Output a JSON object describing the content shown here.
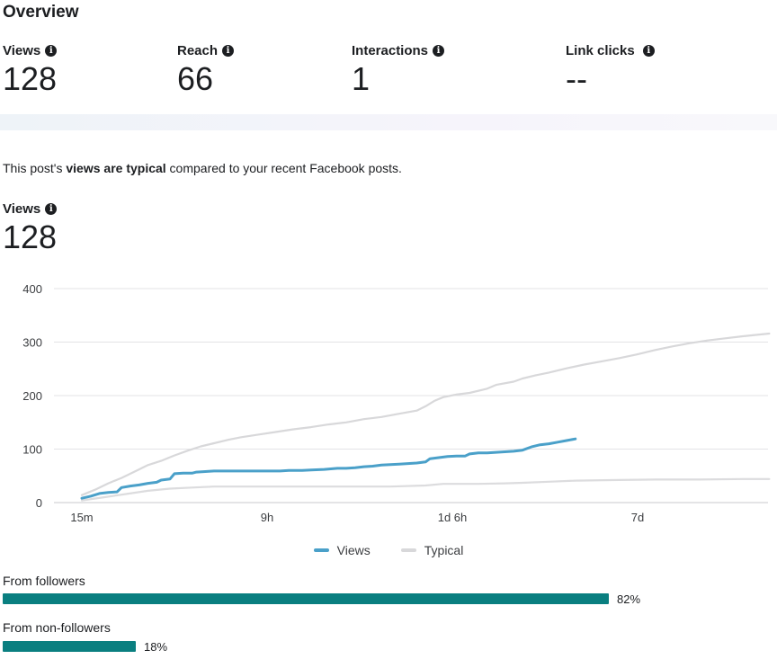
{
  "overview": {
    "title": "Overview",
    "metrics": [
      {
        "label": "Views",
        "value": "128"
      },
      {
        "label": "Reach",
        "value": "66"
      },
      {
        "label": "Interactions",
        "value": "1"
      },
      {
        "label": "Link clicks",
        "value": "--"
      }
    ],
    "info_glyph": "i"
  },
  "typical": {
    "prefix": "This post's ",
    "bold": "views are typical",
    "suffix": " compared to your recent Facebook posts."
  },
  "views_section": {
    "label": "Views",
    "value": "128"
  },
  "chart_data": {
    "type": "line",
    "title": "",
    "xlabel": "",
    "ylabel": "",
    "ylim": [
      0,
      400
    ],
    "yticks": [
      "0",
      "100",
      "200",
      "300",
      "400"
    ],
    "xticks": [
      "15m",
      "9h",
      "1d 6h",
      "7d"
    ],
    "grid": true,
    "legend_placement": "bottom-center",
    "series": [
      {
        "name": "Views",
        "color": "#4aa0c9",
        "points": [
          [
            0,
            8
          ],
          [
            2,
            12
          ],
          [
            4,
            17
          ],
          [
            6,
            19
          ],
          [
            8,
            20
          ],
          [
            9,
            28
          ],
          [
            11,
            31
          ],
          [
            13,
            33
          ],
          [
            15,
            36
          ],
          [
            17,
            38
          ],
          [
            18,
            42
          ],
          [
            20,
            44
          ],
          [
            21,
            54
          ],
          [
            23,
            55
          ],
          [
            25,
            55
          ],
          [
            26,
            57
          ],
          [
            28,
            58
          ],
          [
            30,
            59
          ],
          [
            35,
            59
          ],
          [
            40,
            59
          ],
          [
            45,
            59
          ],
          [
            47,
            60
          ],
          [
            50,
            60
          ],
          [
            52,
            61
          ],
          [
            55,
            62
          ],
          [
            58,
            64
          ],
          [
            60,
            64
          ],
          [
            62,
            65
          ],
          [
            64,
            67
          ],
          [
            66,
            68
          ],
          [
            68,
            70
          ],
          [
            70,
            71
          ],
          [
            72,
            72
          ],
          [
            74,
            73
          ],
          [
            76,
            74
          ],
          [
            78,
            76
          ],
          [
            79,
            82
          ],
          [
            81,
            84
          ],
          [
            83,
            86
          ],
          [
            85,
            87
          ],
          [
            87,
            87
          ],
          [
            88,
            91
          ],
          [
            90,
            93
          ],
          [
            92,
            93
          ],
          [
            94,
            94
          ],
          [
            96,
            95
          ],
          [
            98,
            96
          ],
          [
            100,
            98
          ],
          [
            102,
            104
          ],
          [
            104,
            108
          ],
          [
            106,
            110
          ],
          [
            108,
            113
          ],
          [
            110,
            116
          ],
          [
            112,
            119
          ]
        ]
      },
      {
        "name": "Typical",
        "color": "#d8d8da",
        "points": [
          [
            0,
            14
          ],
          [
            3,
            24
          ],
          [
            6,
            36
          ],
          [
            9,
            46
          ],
          [
            11,
            54
          ],
          [
            13,
            62
          ],
          [
            15,
            70
          ],
          [
            18,
            78
          ],
          [
            21,
            88
          ],
          [
            24,
            97
          ],
          [
            27,
            105
          ],
          [
            30,
            111
          ],
          [
            33,
            117
          ],
          [
            36,
            122
          ],
          [
            40,
            127
          ],
          [
            44,
            132
          ],
          [
            48,
            137
          ],
          [
            52,
            141
          ],
          [
            56,
            146
          ],
          [
            60,
            150
          ],
          [
            64,
            156
          ],
          [
            68,
            160
          ],
          [
            72,
            166
          ],
          [
            76,
            172
          ],
          [
            78,
            180
          ],
          [
            80,
            190
          ],
          [
            82,
            197
          ],
          [
            85,
            202
          ],
          [
            88,
            205
          ],
          [
            92,
            213
          ],
          [
            94,
            220
          ],
          [
            98,
            226
          ],
          [
            100,
            232
          ],
          [
            103,
            238
          ],
          [
            106,
            243
          ],
          [
            110,
            251
          ],
          [
            114,
            258
          ],
          [
            118,
            264
          ],
          [
            122,
            270
          ],
          [
            126,
            277
          ],
          [
            130,
            285
          ],
          [
            134,
            292
          ],
          [
            138,
            298
          ],
          [
            142,
            303
          ],
          [
            146,
            307
          ],
          [
            150,
            311
          ],
          [
            156,
            316
          ]
        ]
      },
      {
        "name": "Typical low",
        "color": "#dcdcde",
        "points": [
          [
            0,
            4
          ],
          [
            5,
            10
          ],
          [
            10,
            16
          ],
          [
            15,
            22
          ],
          [
            20,
            26
          ],
          [
            25,
            28
          ],
          [
            30,
            30
          ],
          [
            40,
            30
          ],
          [
            50,
            30
          ],
          [
            60,
            30
          ],
          [
            70,
            30
          ],
          [
            78,
            32
          ],
          [
            82,
            35
          ],
          [
            90,
            35
          ],
          [
            96,
            36
          ],
          [
            100,
            37
          ],
          [
            106,
            39
          ],
          [
            112,
            41
          ],
          [
            120,
            42
          ],
          [
            130,
            43
          ],
          [
            140,
            43
          ],
          [
            150,
            44
          ],
          [
            156,
            44
          ]
        ]
      }
    ]
  },
  "sources": [
    {
      "label": "From followers",
      "percent": 82,
      "percent_label": "82%"
    },
    {
      "label": "From non-followers",
      "percent": 18,
      "percent_label": "18%"
    }
  ]
}
